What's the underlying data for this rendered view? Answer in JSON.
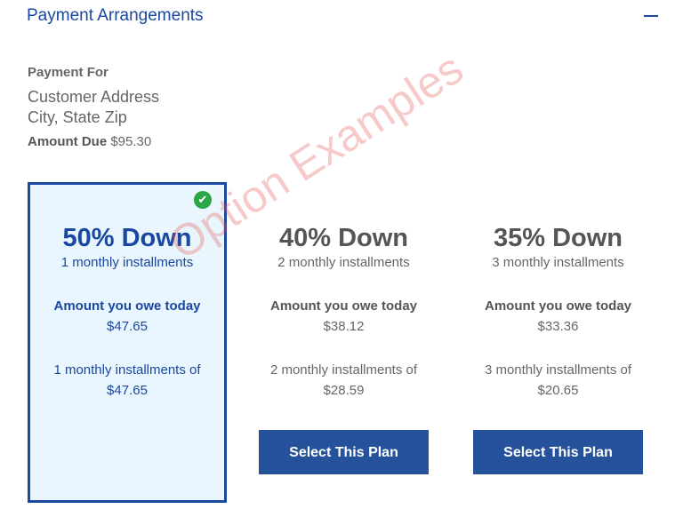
{
  "header": {
    "title": "Payment Arrangements",
    "collapse_icon": "minus-icon"
  },
  "payment_for": {
    "label": "Payment For",
    "address_line1": "Customer Address",
    "address_line2": "City, State Zip",
    "amount_due_label": "Amount Due",
    "amount_due": "$95.30"
  },
  "plans": [
    {
      "title": "50% Down",
      "installments": "1 monthly installments",
      "owe_label": "Amount you owe today",
      "owe_today": "$47.65",
      "installment_label": "1 monthly installments of",
      "installment_amount": "$47.65",
      "selected": true
    },
    {
      "title": "40% Down",
      "installments": "2 monthly installments",
      "owe_label": "Amount you owe today",
      "owe_today": "$38.12",
      "installment_label": "2 monthly installments of",
      "installment_amount": "$28.59",
      "button": "Select This Plan"
    },
    {
      "title": "35% Down",
      "installments": "3 monthly installments",
      "owe_label": "Amount you owe today",
      "owe_today": "$33.36",
      "installment_label": "3 monthly installments of",
      "installment_amount": "$20.65",
      "button": "Select This Plan"
    }
  ],
  "watermark": "Option Examples",
  "colors": {
    "accent": "#1a47a0",
    "button": "#26529c",
    "selected_bg": "#eaf6fd",
    "check": "#2aa547"
  }
}
